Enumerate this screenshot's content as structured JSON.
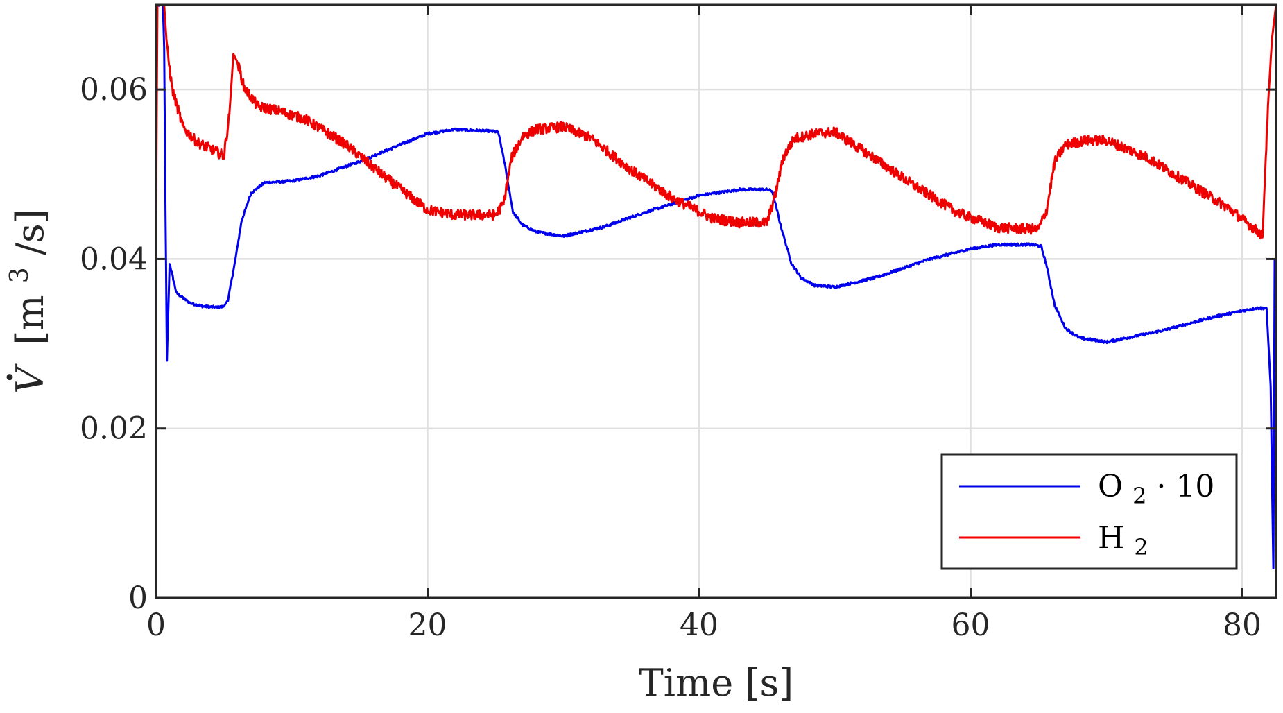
{
  "chart_data": {
    "type": "line",
    "xlabel": "Time [s]",
    "ylabel_parts": {
      "symbol": "V",
      "unit_prefix": "[m",
      "unit_exp": "3",
      "unit_suffix": "/s]"
    },
    "xlim": [
      0,
      82.5
    ],
    "ylim": [
      0,
      0.07
    ],
    "x_ticks": [
      0,
      20,
      40,
      60,
      80
    ],
    "x_tick_labels": [
      "0",
      "20",
      "40",
      "60",
      "80"
    ],
    "y_ticks": [
      0,
      0.02,
      0.04,
      0.06
    ],
    "y_tick_labels": [
      "0",
      "0.02",
      "0.04",
      "0.06"
    ],
    "grid": true,
    "legend_position": "bottom-right",
    "series": [
      {
        "name": "O2 · 10",
        "label_parts": {
          "main": "O",
          "sub": "2",
          "suffix": " · 10"
        },
        "color": "#0000ee",
        "noise": 0.00015,
        "x": [
          0,
          0.5,
          0.6,
          0.7,
          0.8,
          1.0,
          1.5,
          2.5,
          3.5,
          4.5,
          5.0,
          5.3,
          5.8,
          6.3,
          7.0,
          8.0,
          10.0,
          12.0,
          15.0,
          18.0,
          20.0,
          22.0,
          24.5,
          25.2,
          25.6,
          26.3,
          27.0,
          28.0,
          30.0,
          33.0,
          36.0,
          40.0,
          43.0,
          45.0,
          45.4,
          46.0,
          46.8,
          47.5,
          48.5,
          50.0,
          53.0,
          57.0,
          60.0,
          62.0,
          64.5,
          65.2,
          65.6,
          66.2,
          67.0,
          68.0,
          70.0,
          74.0,
          78.0,
          81.0,
          81.8,
          82.1,
          82.3,
          82.4
        ],
        "y": [
          0.07,
          0.07,
          0.065,
          0.045,
          0.028,
          0.0395,
          0.036,
          0.0348,
          0.0344,
          0.0343,
          0.0344,
          0.0352,
          0.0395,
          0.0445,
          0.0478,
          0.049,
          0.0492,
          0.0498,
          0.0515,
          0.0535,
          0.0548,
          0.0553,
          0.0551,
          0.055,
          0.052,
          0.0455,
          0.044,
          0.0432,
          0.0427,
          0.0438,
          0.0455,
          0.0475,
          0.0482,
          0.0482,
          0.048,
          0.044,
          0.0395,
          0.0378,
          0.0369,
          0.0367,
          0.0378,
          0.04,
          0.0412,
          0.0417,
          0.0417,
          0.0415,
          0.0392,
          0.0345,
          0.0318,
          0.0307,
          0.0302,
          0.0315,
          0.0332,
          0.0342,
          0.0342,
          0.025,
          0.0035,
          0.04
        ]
      },
      {
        "name": "H2",
        "label_parts": {
          "main": "H",
          "sub": "2",
          "suffix": ""
        },
        "color": "#ee0000",
        "noise": 0.0006,
        "x": [
          0,
          0.1,
          0.3,
          0.6,
          0.8,
          1.2,
          2.0,
          3.0,
          4.0,
          5.0,
          5.4,
          5.7,
          6.0,
          6.5,
          7.5,
          9.0,
          11.0,
          14.0,
          17.0,
          20.0,
          22.0,
          25.0,
          25.6,
          26.2,
          27.0,
          28.0,
          30.0,
          32.0,
          35.0,
          38.0,
          41.0,
          43.0,
          45.0,
          45.6,
          46.2,
          47.0,
          48.5,
          50.0,
          53.0,
          56.0,
          59.0,
          62.0,
          65.0,
          65.6,
          66.2,
          67.0,
          68.5,
          70.0,
          73.0,
          76.0,
          79.0,
          81.5,
          81.9,
          82.2,
          82.5
        ],
        "y": [
          0.045,
          0.07,
          0.07,
          0.07,
          0.065,
          0.06,
          0.0555,
          0.0538,
          0.053,
          0.0522,
          0.057,
          0.0642,
          0.0632,
          0.0602,
          0.058,
          0.0575,
          0.0565,
          0.0535,
          0.0495,
          0.0458,
          0.0452,
          0.0452,
          0.0465,
          0.052,
          0.0545,
          0.0553,
          0.0556,
          0.0543,
          0.0505,
          0.0472,
          0.0448,
          0.0443,
          0.0443,
          0.0475,
          0.052,
          0.0542,
          0.0548,
          0.055,
          0.0518,
          0.0485,
          0.0455,
          0.0437,
          0.0435,
          0.0458,
          0.0515,
          0.0535,
          0.054,
          0.054,
          0.052,
          0.049,
          0.046,
          0.0428,
          0.058,
          0.066,
          0.07
        ]
      }
    ]
  }
}
